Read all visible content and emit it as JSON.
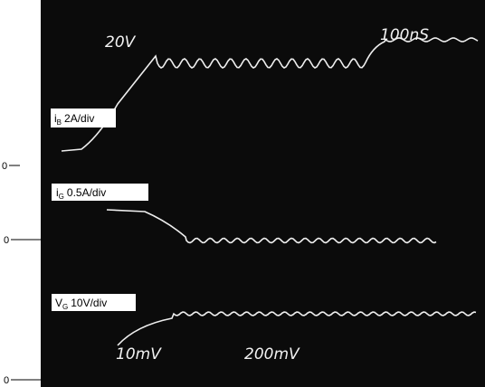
{
  "traces": [
    {
      "label": {
        "symbol": "i",
        "subscript": "B",
        "scale": "2A/div"
      }
    },
    {
      "label": {
        "symbol": "i",
        "subscript": "G",
        "scale": "0.5A/div"
      }
    },
    {
      "label": {
        "symbol": "V",
        "subscript": "G",
        "scale": "10V/div"
      }
    }
  ],
  "zero_markers": [
    "0",
    "0",
    "0"
  ],
  "annotations": [
    "20V",
    "100nS",
    "10mV",
    "200mV"
  ]
}
